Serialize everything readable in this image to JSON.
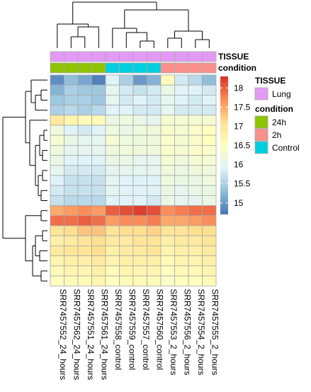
{
  "chart_data": {
    "type": "heatmap",
    "title": "",
    "columns": [
      "SRR7457552_24_hours",
      "SRR7457562_24_hours",
      "SRR7457551_24_hours",
      "SRR7457561_24_hours",
      "SRR7457558_control",
      "SRR7457559_control",
      "SRR7457557_control",
      "SRR7457560_control",
      "SRR7457553_2_hours",
      "SRR7457556_2_hours",
      "SRR7457554_2_hours",
      "SRR7457555_2_hours"
    ],
    "column_annotations": {
      "tissue": [
        "Lung",
        "Lung",
        "Lung",
        "Lung",
        "Lung",
        "Lung",
        "Lung",
        "Lung",
        "Lung",
        "Lung",
        "Lung",
        "Lung"
      ],
      "condition": [
        "24h",
        "24h",
        "24h",
        "24h",
        "Control",
        "Control",
        "Control",
        "Control",
        "2h",
        "2h",
        "2h",
        "2h"
      ]
    },
    "annotation_track_labels": [
      "TISSUE",
      "condition"
    ],
    "values": [
      [
        14.9,
        15.3,
        15.1,
        14.8,
        15.9,
        15.5,
        15.0,
        15.2,
        16.6,
        15.8,
        15.6,
        15.3
      ],
      [
        15.2,
        15.5,
        15.4,
        15.4,
        16.0,
        15.8,
        15.7,
        15.8,
        16.1,
        15.9,
        15.9,
        15.8
      ],
      [
        15.4,
        15.5,
        15.5,
        15.4,
        16.0,
        15.8,
        15.9,
        15.8,
        16.0,
        15.9,
        15.8,
        15.9
      ],
      [
        15.5,
        15.6,
        15.5,
        15.6,
        15.9,
        15.9,
        15.8,
        15.8,
        16.0,
        15.8,
        15.8,
        15.8
      ],
      [
        16.9,
        16.7,
        16.6,
        16.6,
        16.1,
        16.2,
        16.1,
        16.0,
        16.3,
        16.3,
        16.3,
        16.3
      ],
      [
        16.2,
        15.9,
        15.8,
        15.9,
        16.2,
        16.1,
        16.2,
        16.2,
        16.4,
        16.3,
        16.4,
        16.5
      ],
      [
        16.3,
        16.1,
        16.0,
        16.0,
        16.3,
        16.2,
        16.2,
        16.2,
        16.4,
        16.3,
        16.4,
        16.5
      ],
      [
        16.2,
        16.0,
        16.0,
        16.0,
        16.2,
        16.2,
        16.2,
        16.2,
        16.4,
        16.3,
        16.4,
        16.4
      ],
      [
        16.1,
        15.9,
        15.9,
        15.9,
        16.1,
        16.1,
        16.0,
        16.0,
        16.3,
        16.2,
        16.3,
        16.3
      ],
      [
        16.0,
        15.8,
        15.8,
        15.8,
        16.0,
        16.0,
        16.0,
        16.0,
        16.2,
        16.1,
        16.2,
        16.2
      ],
      [
        15.9,
        15.7,
        15.7,
        15.7,
        16.0,
        15.9,
        15.9,
        15.9,
        16.2,
        16.1,
        16.1,
        16.2
      ],
      [
        15.8,
        15.7,
        15.7,
        15.7,
        16.0,
        15.9,
        15.9,
        15.9,
        16.1,
        16.0,
        16.1,
        16.1
      ],
      [
        15.7,
        15.6,
        15.6,
        15.6,
        15.9,
        15.9,
        15.9,
        15.8,
        16.1,
        16.0,
        16.0,
        16.1
      ],
      [
        17.5,
        17.6,
        17.7,
        17.6,
        18.0,
        18.1,
        18.2,
        18.1,
        17.7,
        17.8,
        17.9,
        17.9
      ],
      [
        17.9,
        17.9,
        18.0,
        17.9,
        17.6,
        17.7,
        17.7,
        17.8,
        17.5,
        17.5,
        17.6,
        17.7
      ],
      [
        17.0,
        17.1,
        17.3,
        17.3,
        17.0,
        17.1,
        17.1,
        17.2,
        17.0,
        17.0,
        17.1,
        17.1
      ],
      [
        16.8,
        16.9,
        17.0,
        17.1,
        16.9,
        16.9,
        17.0,
        17.0,
        16.8,
        16.9,
        16.9,
        17.0
      ],
      [
        16.9,
        17.0,
        17.0,
        17.1,
        16.8,
        16.9,
        16.9,
        17.0,
        16.7,
        16.8,
        16.8,
        16.9
      ],
      [
        16.7,
        16.8,
        16.8,
        16.9,
        16.7,
        16.8,
        16.8,
        16.8,
        16.6,
        16.7,
        16.7,
        16.8
      ],
      [
        16.6,
        16.7,
        16.7,
        16.8,
        16.6,
        16.7,
        16.7,
        16.7,
        16.5,
        16.6,
        16.6,
        16.7
      ],
      [
        16.5,
        16.6,
        16.6,
        16.7,
        16.5,
        16.6,
        16.6,
        16.6,
        16.4,
        16.5,
        16.5,
        16.6
      ]
    ],
    "color_scale": {
      "min": 14.7,
      "max": 18.3,
      "stops": [
        [
          14.7,
          "#4575b4"
        ],
        [
          15.3,
          "#91bfdb"
        ],
        [
          15.9,
          "#e0f3f8"
        ],
        [
          16.5,
          "#ffffbf"
        ],
        [
          17.1,
          "#fee090"
        ],
        [
          17.7,
          "#fc8d59"
        ],
        [
          18.3,
          "#d73027"
        ]
      ],
      "ticks": [
        "15",
        "15.5",
        "16",
        "16.5",
        "17",
        "17.5",
        "18"
      ]
    },
    "legend": {
      "tissue": {
        "title": "TISSUE",
        "items": [
          {
            "label": "Lung",
            "color": "#e39af5"
          }
        ]
      },
      "condition": {
        "title": "condition",
        "items": [
          {
            "label": "24h",
            "color": "#8fc400"
          },
          {
            "label": "2h",
            "color": "#f9908a"
          },
          {
            "label": "Control",
            "color": "#00cfe0"
          }
        ]
      }
    },
    "annotation_colors": {
      "Lung": "#e39af5",
      "24h": "#8fc400",
      "2h": "#f9908a",
      "Control": "#00cfe0"
    }
  }
}
